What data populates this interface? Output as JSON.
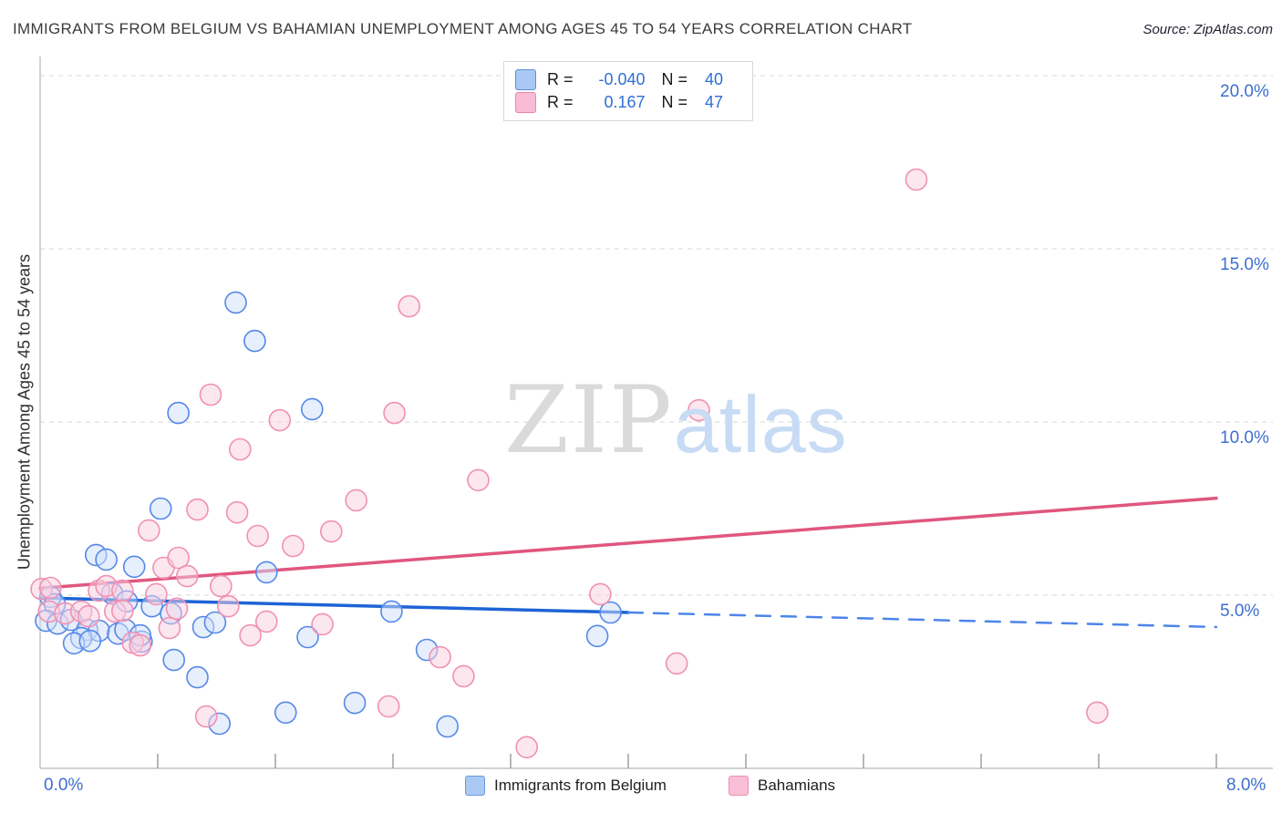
{
  "title": "IMMIGRANTS FROM BELGIUM VS BAHAMIAN UNEMPLOYMENT AMONG AGES 45 TO 54 YEARS CORRELATION CHART",
  "source": "Source: ZipAtlas.com",
  "watermark": {
    "zip": "ZIP",
    "atlas": "atlas"
  },
  "rn_legend": {
    "rows": [
      {
        "series": "Immigrants from Belgium",
        "r_label": "R = ",
        "r_value": "-0.040",
        "n_label": "N = ",
        "n_value": "40"
      },
      {
        "series": "Bahamians",
        "r_label": "R = ",
        "r_value": "0.167",
        "n_label": "N = ",
        "n_value": "47"
      }
    ]
  },
  "y_axis": {
    "title": "Unemployment Among Ages 45 to 54 years",
    "tick_labels": [
      "20.0%",
      "15.0%",
      "10.0%",
      "5.0%"
    ],
    "tick_values": [
      20,
      15,
      10,
      5
    ]
  },
  "x_axis": {
    "left_label": "0.0%",
    "right_label": "8.0%",
    "tick_values": [
      0.8,
      1.6,
      2.4,
      3.2,
      4.0,
      4.8,
      5.6,
      6.4,
      7.2,
      8.0
    ]
  },
  "bottom_legend": [
    {
      "label": "Immigrants from Belgium",
      "color": "#aac9f3"
    },
    {
      "label": "Bahamians",
      "color": "#f9bfd6"
    }
  ],
  "colors": {
    "blue_point_stroke": "#5588e8",
    "blue_point_fill": "#cfe0f9",
    "pink_point_stroke": "#f090b4",
    "pink_point_fill": "#f9cfe0",
    "blue_trend": "#1e63d6",
    "blue_trend_dashed": "#4d84e8",
    "pink_trend": "#e0567f",
    "gridline": "#d7d7d7",
    "axis": "#c4c4c4",
    "tick": "#9aa0a6",
    "axis_label_blue": "#3e6ed0"
  },
  "chart_data": {
    "type": "scatter",
    "title": "Immigrants from Belgium vs Bahamian Unemployment Among Ages 45 to 54 years",
    "xlabel": "Immigrants from Belgium (%)",
    "ylabel": "Unemployment Among Ages 45 to 54 years",
    "xlim": [
      0,
      8
    ],
    "ylim": [
      0,
      20.5
    ],
    "grid": "horizontal-dashed",
    "y_gridlines": [
      5,
      10,
      15,
      20
    ],
    "legend_position": "bottom-center",
    "series": [
      {
        "name": "Immigrants from Belgium",
        "R": -0.04,
        "N": 40,
        "points": [
          [
            1.33,
            13.45
          ],
          [
            1.46,
            12.34
          ],
          [
            0.94,
            10.26
          ],
          [
            1.85,
            10.37
          ],
          [
            0.82,
            7.5
          ],
          [
            2.39,
            4.53
          ],
          [
            3.88,
            4.5
          ],
          [
            3.79,
            3.82
          ],
          [
            2.63,
            3.42
          ],
          [
            2.77,
            1.21
          ],
          [
            2.14,
            1.89
          ],
          [
            1.67,
            1.61
          ],
          [
            1.22,
            1.29
          ],
          [
            1.07,
            2.63
          ],
          [
            0.91,
            3.13
          ],
          [
            1.54,
            5.66
          ],
          [
            1.82,
            3.79
          ],
          [
            1.11,
            4.08
          ],
          [
            1.19,
            4.21
          ],
          [
            0.69,
            3.66
          ],
          [
            0.38,
            6.16
          ],
          [
            0.45,
            6.03
          ],
          [
            0.64,
            5.82
          ],
          [
            0.49,
            5.05
          ],
          [
            0.59,
            4.82
          ],
          [
            0.76,
            4.68
          ],
          [
            0.89,
            4.47
          ],
          [
            0.07,
            4.95
          ],
          [
            0.1,
            4.74
          ],
          [
            0.04,
            4.26
          ],
          [
            0.12,
            4.18
          ],
          [
            0.21,
            4.29
          ],
          [
            0.32,
            4.0
          ],
          [
            0.4,
            3.97
          ],
          [
            0.28,
            3.76
          ],
          [
            0.23,
            3.61
          ],
          [
            0.53,
            3.89
          ],
          [
            0.58,
            4.0
          ],
          [
            0.68,
            3.84
          ],
          [
            0.34,
            3.68
          ]
        ]
      },
      {
        "name": "Bahamians",
        "R": 0.167,
        "N": 47,
        "points": [
          [
            5.96,
            17.0
          ],
          [
            2.51,
            13.34
          ],
          [
            1.16,
            10.79
          ],
          [
            1.63,
            10.05
          ],
          [
            2.41,
            10.26
          ],
          [
            4.48,
            10.34
          ],
          [
            1.36,
            9.21
          ],
          [
            2.98,
            8.32
          ],
          [
            1.07,
            7.47
          ],
          [
            1.34,
            7.39
          ],
          [
            2.15,
            7.74
          ],
          [
            0.74,
            6.87
          ],
          [
            1.48,
            6.71
          ],
          [
            1.72,
            6.42
          ],
          [
            1.98,
            6.84
          ],
          [
            0.84,
            5.79
          ],
          [
            0.94,
            6.08
          ],
          [
            1.0,
            5.55
          ],
          [
            1.23,
            5.26
          ],
          [
            1.28,
            4.68
          ],
          [
            1.43,
            3.84
          ],
          [
            1.54,
            4.24
          ],
          [
            1.92,
            4.16
          ],
          [
            0.88,
            4.05
          ],
          [
            1.13,
            1.5
          ],
          [
            2.37,
            1.79
          ],
          [
            2.72,
            3.21
          ],
          [
            2.88,
            2.66
          ],
          [
            3.31,
            0.61
          ],
          [
            3.81,
            5.03
          ],
          [
            4.33,
            3.03
          ],
          [
            7.19,
            1.61
          ],
          [
            0.01,
            5.18
          ],
          [
            0.07,
            5.21
          ],
          [
            0.4,
            5.13
          ],
          [
            0.45,
            5.26
          ],
          [
            0.56,
            5.13
          ],
          [
            0.79,
            5.03
          ],
          [
            0.06,
            4.53
          ],
          [
            0.17,
            4.47
          ],
          [
            0.28,
            4.53
          ],
          [
            0.33,
            4.39
          ],
          [
            0.51,
            4.53
          ],
          [
            0.56,
            4.55
          ],
          [
            0.63,
            3.63
          ],
          [
            0.68,
            3.55
          ],
          [
            0.93,
            4.61
          ]
        ]
      }
    ],
    "trend_lines": [
      {
        "series": "Immigrants from Belgium",
        "x_start": 0,
        "y_start": 4.92,
        "x_end": 8,
        "y_end": 4.08,
        "solid_until_x": 4.0
      },
      {
        "series": "Bahamians",
        "x_start": 0,
        "y_start": 5.2,
        "x_end": 8,
        "y_end": 7.8,
        "solid_until_x": 8
      }
    ]
  }
}
